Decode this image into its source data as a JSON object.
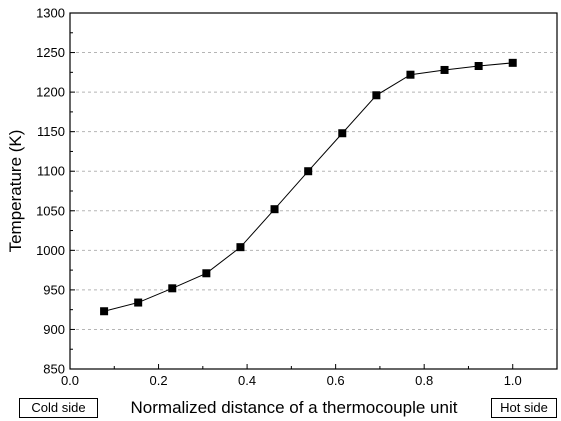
{
  "chart_data": {
    "type": "line",
    "xlabel": "Normalized distance of a thermocouple unit",
    "ylabel": "Temperature (K)",
    "xlim": [
      0.0,
      1.1
    ],
    "ylim": [
      850,
      1300
    ],
    "xticks": [
      "0.0",
      "0.2",
      "0.4",
      "0.6",
      "0.8",
      "1.0"
    ],
    "yticks": [
      "850",
      "900",
      "950",
      "1000",
      "1050",
      "1100",
      "1150",
      "1200",
      "1250",
      "1300"
    ],
    "grid": "horizontal dashed",
    "marker": "square",
    "line_color": "#000000",
    "series": [
      {
        "x": [
          0.077,
          0.154,
          0.231,
          0.308,
          0.385,
          0.462,
          0.538,
          0.615,
          0.692,
          0.769,
          0.846,
          0.923,
          1.0
        ],
        "y": [
          923,
          934,
          952,
          971,
          1004,
          1052,
          1100,
          1148,
          1196,
          1222,
          1228,
          1233,
          1237
        ]
      }
    ],
    "annotations": {
      "left": "Cold side",
      "right": "Hot side"
    }
  }
}
